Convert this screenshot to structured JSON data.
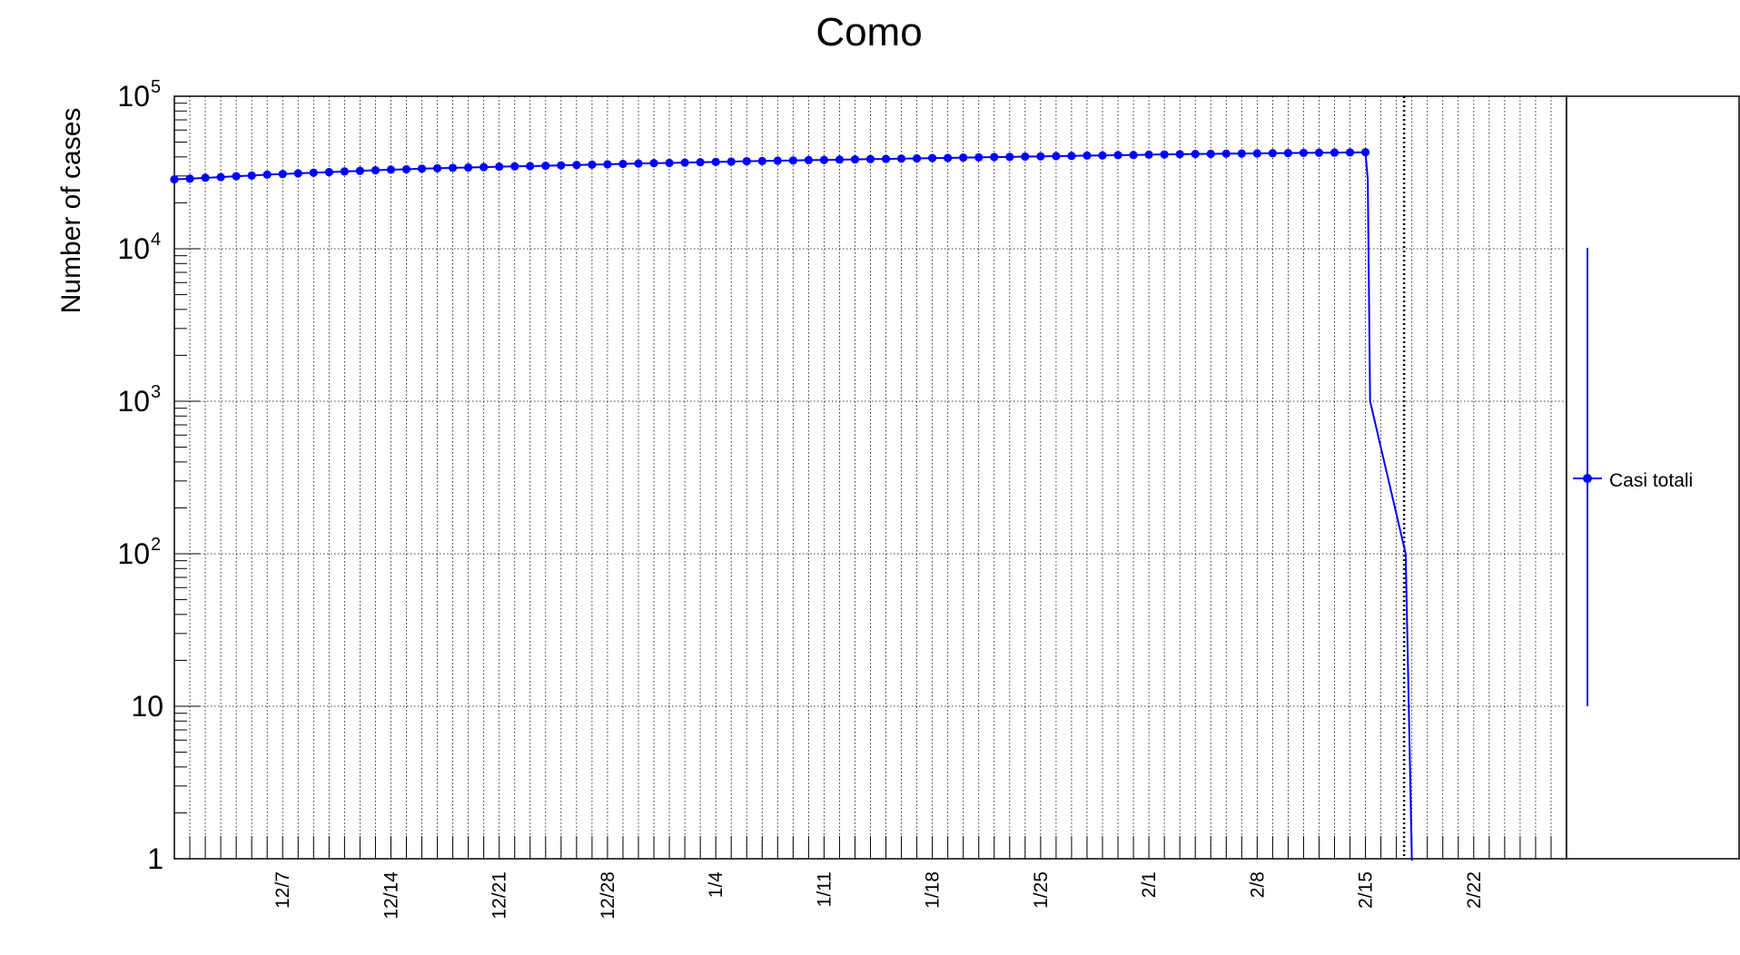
{
  "chart_data": {
    "type": "line",
    "title": "Como",
    "xlabel": "",
    "ylabel": "Number of cases",
    "yscale": "log",
    "ylim": [
      1,
      100000
    ],
    "grid": true,
    "xlim": [
      -6,
      84
    ],
    "x_tick_labels": [
      "12/7",
      "12/14",
      "12/21",
      "12/28",
      "1/4",
      "1/11",
      "1/18",
      "1/25",
      "2/1",
      "2/8",
      "2/15",
      "2/22"
    ],
    "x_tick_label_positions": [
      1,
      8,
      15,
      22,
      29,
      36,
      43,
      50,
      57,
      64,
      71,
      78
    ],
    "y_tick_labels": [
      {
        "value": 1,
        "base": "1",
        "exp": ""
      },
      {
        "value": 10,
        "base": "10",
        "exp": ""
      },
      {
        "value": 100,
        "base": "10",
        "exp": "2"
      },
      {
        "value": 1000,
        "base": "10",
        "exp": "3"
      },
      {
        "value": 10000,
        "base": "10",
        "exp": "4"
      },
      {
        "value": 100000,
        "base": "10",
        "exp": "5"
      }
    ],
    "vertical_marker_x": 73.5,
    "drop_to_x": 74,
    "series": [
      {
        "name": "Casi totali",
        "color": "#0000ff",
        "x_start": -6,
        "values": [
          28500,
          28800,
          29200,
          29500,
          29900,
          30200,
          30600,
          30900,
          31200,
          31500,
          31800,
          32100,
          32400,
          32700,
          33000,
          33200,
          33500,
          33700,
          33900,
          34100,
          34300,
          34500,
          34700,
          34800,
          35000,
          35200,
          35400,
          35600,
          35800,
          36000,
          36200,
          36400,
          36500,
          36700,
          36900,
          37100,
          37300,
          37500,
          37600,
          37800,
          37900,
          38100,
          38200,
          38400,
          38500,
          38700,
          38800,
          39000,
          39100,
          39300,
          39400,
          39600,
          39700,
          39900,
          40000,
          40200,
          40300,
          40500,
          40600,
          40800,
          40900,
          41100,
          41200,
          41400,
          41500,
          41700,
          41800,
          41900,
          42000,
          42100,
          42200,
          42300,
          42400,
          42500,
          42600,
          42700,
          42800,
          42900
        ]
      }
    ],
    "legend": {
      "position": "right",
      "label": "Casi totali"
    }
  }
}
